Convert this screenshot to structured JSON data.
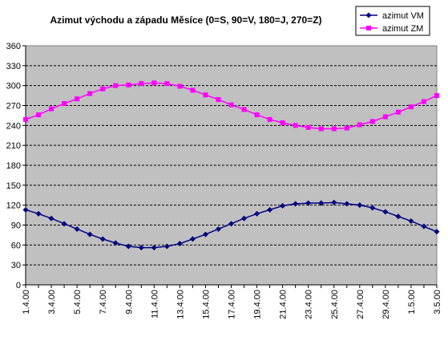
{
  "chart_data": {
    "type": "line",
    "title": "Azimut východu a západu Měsíce (0=S, 90=V, 180=J, 270=Z)",
    "xlabel": "",
    "ylabel": "",
    "ylim": [
      0,
      360
    ],
    "yticks": [
      "0",
      "30",
      "60",
      "90",
      "120",
      "150",
      "180",
      "210",
      "240",
      "270",
      "300",
      "330",
      "360"
    ],
    "grid": true,
    "legend_position": "top-right",
    "plot_background": "#c0c0c0",
    "x": [
      "1.4.00",
      "2.4.00",
      "3.4.00",
      "4.4.00",
      "5.4.00",
      "6.4.00",
      "7.4.00",
      "8.4.00",
      "9.4.00",
      "10.4.00",
      "11.4.00",
      "12.4.00",
      "13.4.00",
      "14.4.00",
      "15.4.00",
      "16.4.00",
      "17.4.00",
      "18.4.00",
      "19.4.00",
      "20.4.00",
      "21.4.00",
      "22.4.00",
      "23.4.00",
      "24.4.00",
      "25.4.00",
      "26.4.00",
      "27.4.00",
      "28.4.00",
      "29.4.00",
      "30.4.00",
      "1.5.00",
      "2.5.00",
      "3.5.00"
    ],
    "x_tick_labels": [
      "1.4.00",
      "3.4.00",
      "5.4.00",
      "7.4.00",
      "9.4.00",
      "11.4.00",
      "13.4.00",
      "15.4.00",
      "17.4.00",
      "19.4.00",
      "21.4.00",
      "23.4.00",
      "25.4.00",
      "27.4.00",
      "29.4.00",
      "1.5.00",
      "3.5.00"
    ],
    "series": [
      {
        "name": "azimut VM",
        "color": "#000080",
        "marker": "diamond",
        "values": [
          113,
          107,
          100,
          92,
          84,
          76,
          69,
          63,
          58,
          56,
          56,
          58,
          62,
          69,
          76,
          84,
          92,
          100,
          107,
          113,
          119,
          122,
          123,
          123,
          124,
          122,
          120,
          116,
          110,
          103,
          96,
          88,
          80
        ]
      },
      {
        "name": "azimut ZM",
        "color": "#ff00ff",
        "marker": "square",
        "values": [
          249,
          256,
          265,
          273,
          280,
          288,
          295,
          300,
          301,
          303,
          304,
          303,
          299,
          293,
          286,
          279,
          271,
          264,
          256,
          249,
          244,
          240,
          237,
          235,
          235,
          236,
          241,
          246,
          253,
          260,
          268,
          276,
          285
        ]
      }
    ]
  }
}
